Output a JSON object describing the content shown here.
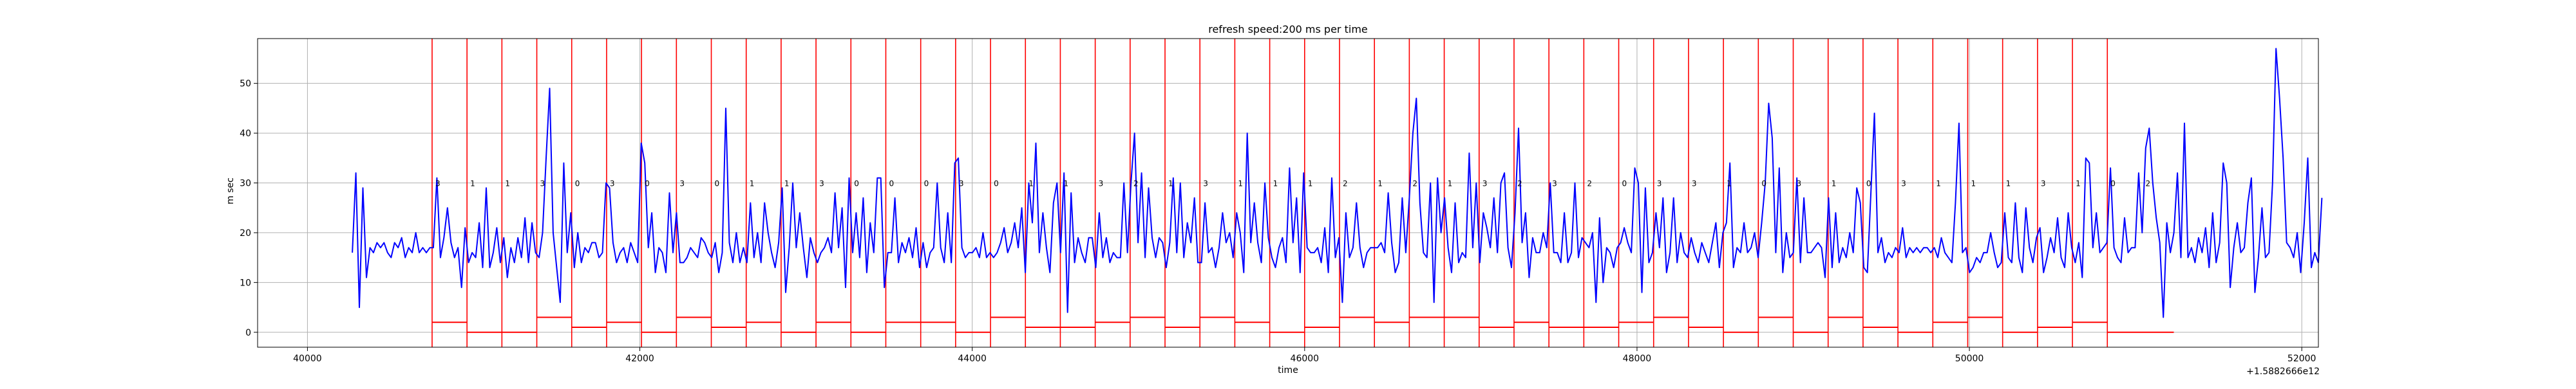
{
  "chart_data": {
    "type": "line",
    "title": "refresh speed:200 ms per time",
    "xlabel": "time",
    "ylabel": "m sec",
    "x_offset_label": "+1.5882666e12",
    "xlim": [
      39700,
      52100
    ],
    "ylim": [
      -3,
      59
    ],
    "x_ticks": [
      40000,
      42000,
      44000,
      46000,
      48000,
      50000,
      52000
    ],
    "x_tick_labels": [
      "40000",
      "42000",
      "44000",
      "46000",
      "48000",
      "50000",
      "52000"
    ],
    "y_ticks": [
      0,
      10,
      20,
      30,
      40,
      50
    ],
    "y_tick_labels": [
      "0",
      "10",
      "20",
      "30",
      "40",
      "50"
    ],
    "grid": true,
    "colors": {
      "series": "#0000ff",
      "markers": "#ff0000",
      "axes": "#000000",
      "grid": "#b0b0b0"
    },
    "series": [
      {
        "type": "line",
        "color": "#0000ff",
        "x_start": 40270,
        "x_step": 21.2,
        "values": [
          16,
          32,
          5,
          29,
          11,
          17,
          16,
          18,
          17,
          18,
          16,
          15,
          18,
          17,
          19,
          15,
          17,
          16,
          20,
          16,
          17,
          16,
          17,
          17,
          31,
          15,
          19,
          25,
          18,
          15,
          17,
          9,
          21,
          14,
          16,
          15,
          22,
          13,
          29,
          13,
          16,
          21,
          14,
          19,
          11,
          17,
          14,
          19,
          15,
          23,
          14,
          22,
          16,
          15,
          20,
          35,
          49,
          20,
          13,
          6,
          34,
          16,
          24,
          13,
          20,
          14,
          17,
          16,
          18,
          18,
          15,
          16,
          30,
          29,
          18,
          14,
          16,
          17,
          14,
          18,
          16,
          14,
          38,
          34,
          17,
          24,
          12,
          17,
          16,
          12,
          28,
          16,
          24,
          14,
          14,
          15,
          17,
          16,
          15,
          19,
          18,
          16,
          15,
          18,
          12,
          16,
          45,
          18,
          14,
          20,
          14,
          17,
          14,
          26,
          15,
          20,
          14,
          26,
          20,
          16,
          13,
          18,
          29,
          8,
          17,
          30,
          17,
          24,
          17,
          11,
          19,
          16,
          14,
          16,
          17,
          19,
          16,
          28,
          17,
          25,
          9,
          31,
          16,
          24,
          15,
          27,
          12,
          22,
          16,
          31,
          31,
          9,
          16,
          16,
          27,
          14,
          18,
          16,
          19,
          15,
          21,
          13,
          18,
          13,
          16,
          17,
          30,
          17,
          14,
          24,
          14,
          34,
          35,
          17,
          15,
          16,
          16,
          17,
          15,
          20,
          15,
          16,
          15,
          16,
          18,
          21,
          16,
          18,
          22,
          17,
          25,
          12,
          30,
          22,
          38,
          16,
          24,
          17,
          12,
          26,
          30,
          16,
          32,
          4,
          28,
          14,
          19,
          16,
          14,
          19,
          19,
          13,
          24,
          15,
          19,
          14,
          16,
          15,
          15,
          30,
          16,
          30,
          40,
          18,
          32,
          15,
          29,
          19,
          15,
          19,
          18,
          13,
          18,
          31,
          16,
          30,
          15,
          22,
          18,
          27,
          14,
          14,
          26,
          16,
          17,
          13,
          17,
          24,
          18,
          20,
          15,
          24,
          20,
          12,
          40,
          18,
          26,
          18,
          14,
          30,
          19,
          15,
          13,
          17,
          19,
          14,
          33,
          18,
          27,
          12,
          32,
          17,
          16,
          16,
          17,
          14,
          21,
          12,
          31,
          15,
          19,
          6,
          24,
          15,
          17,
          26,
          17,
          13,
          16,
          17,
          17,
          17,
          18,
          16,
          28,
          18,
          12,
          14,
          27,
          16,
          27,
          40,
          47,
          26,
          16,
          15,
          30,
          6,
          31,
          20,
          27,
          17,
          12,
          26,
          14,
          16,
          15,
          36,
          17,
          30,
          14,
          24,
          21,
          17,
          27,
          16,
          30,
          32,
          17,
          13,
          24,
          41,
          18,
          24,
          11,
          19,
          16,
          16,
          20,
          17,
          30,
          16,
          16,
          14,
          24,
          14,
          16,
          30,
          15,
          19,
          18,
          17,
          20,
          6,
          23,
          10,
          17,
          16,
          13,
          17,
          18,
          21,
          18,
          16,
          33,
          30,
          8,
          29,
          14,
          16,
          24,
          17,
          27,
          12,
          16,
          27,
          14,
          20,
          16,
          15,
          19,
          16,
          14,
          18,
          16,
          14,
          18,
          22,
          13,
          20,
          22,
          34,
          13,
          17,
          16,
          22,
          16,
          17,
          20,
          15,
          22,
          30,
          46,
          39,
          16,
          33,
          12,
          20,
          15,
          16,
          31,
          14,
          27,
          16,
          16,
          17,
          18,
          17,
          11,
          27,
          13,
          24,
          14,
          17,
          15,
          20,
          16,
          29,
          26,
          13,
          12,
          28,
          44,
          16,
          19,
          14,
          16,
          15,
          17,
          16,
          21,
          15,
          17,
          16,
          17,
          16,
          17,
          17,
          16,
          17,
          15,
          19,
          16,
          15,
          14,
          26,
          42,
          16,
          17,
          12,
          13,
          15,
          14,
          16,
          16,
          20,
          16,
          13,
          14,
          24,
          15,
          14,
          26,
          15,
          12,
          25,
          17,
          14,
          19,
          21,
          12,
          15,
          19,
          16,
          23,
          15,
          13,
          24,
          17,
          14,
          18,
          11,
          35,
          34,
          17,
          24,
          16,
          17,
          18,
          33,
          17,
          15,
          14,
          23,
          16,
          17,
          17,
          32,
          20,
          37,
          41,
          30,
          23,
          18,
          3,
          22,
          16,
          20,
          32,
          15,
          42,
          15,
          17,
          14,
          19,
          16,
          21,
          13,
          24,
          14,
          18,
          34,
          30,
          9,
          17,
          22,
          16,
          17,
          26,
          31,
          8,
          15,
          25,
          15,
          16,
          30,
          57,
          47,
          35,
          18,
          17,
          15,
          20,
          12,
          22,
          35,
          13,
          16,
          14,
          27
        ]
      },
      {
        "type": "segments",
        "color": "#ff0000",
        "boundaries": [
          40750,
          40960,
          41170,
          41380,
          41590,
          41800,
          42010,
          42220,
          42430,
          42640,
          42850,
          43060,
          43270,
          43480,
          43690,
          43900,
          44110,
          44320,
          44530,
          44740,
          44950,
          45160,
          45370,
          45580,
          45790,
          46000,
          46210,
          46420,
          46630,
          46840,
          47050,
          47260,
          47470,
          47680,
          47890,
          48100,
          48310,
          48520,
          48730,
          48940,
          49150,
          49360,
          49570,
          49780,
          49990,
          50200,
          50410,
          50620,
          50830
        ],
        "x_end": 51230,
        "levels": [
          2,
          0,
          0,
          3,
          1,
          2,
          0,
          3,
          1,
          2,
          0,
          2,
          0,
          2,
          2,
          0,
          3,
          1,
          1,
          2,
          3,
          1,
          3,
          2,
          0,
          1,
          3,
          2,
          3,
          3,
          1,
          2,
          1,
          1,
          2,
          3,
          1,
          0,
          3,
          0,
          3,
          1,
          0,
          2,
          3,
          0,
          1,
          2,
          0
        ],
        "labels": [
          "3",
          "1",
          "1",
          "3",
          "0",
          "3",
          "0",
          "3",
          "0",
          "1",
          "1",
          "3",
          "0",
          "0",
          "0",
          "3",
          "0",
          "1",
          "1",
          "3",
          "2",
          "1",
          "3",
          "1",
          "1",
          "1",
          "2",
          "1",
          "2",
          "1",
          "3",
          "2",
          "3",
          "2",
          "0",
          "3",
          "3",
          "1",
          "0",
          "3",
          "1",
          "0",
          "3",
          "1",
          "1",
          "1",
          "3",
          "1",
          "0",
          "2"
        ]
      }
    ]
  }
}
